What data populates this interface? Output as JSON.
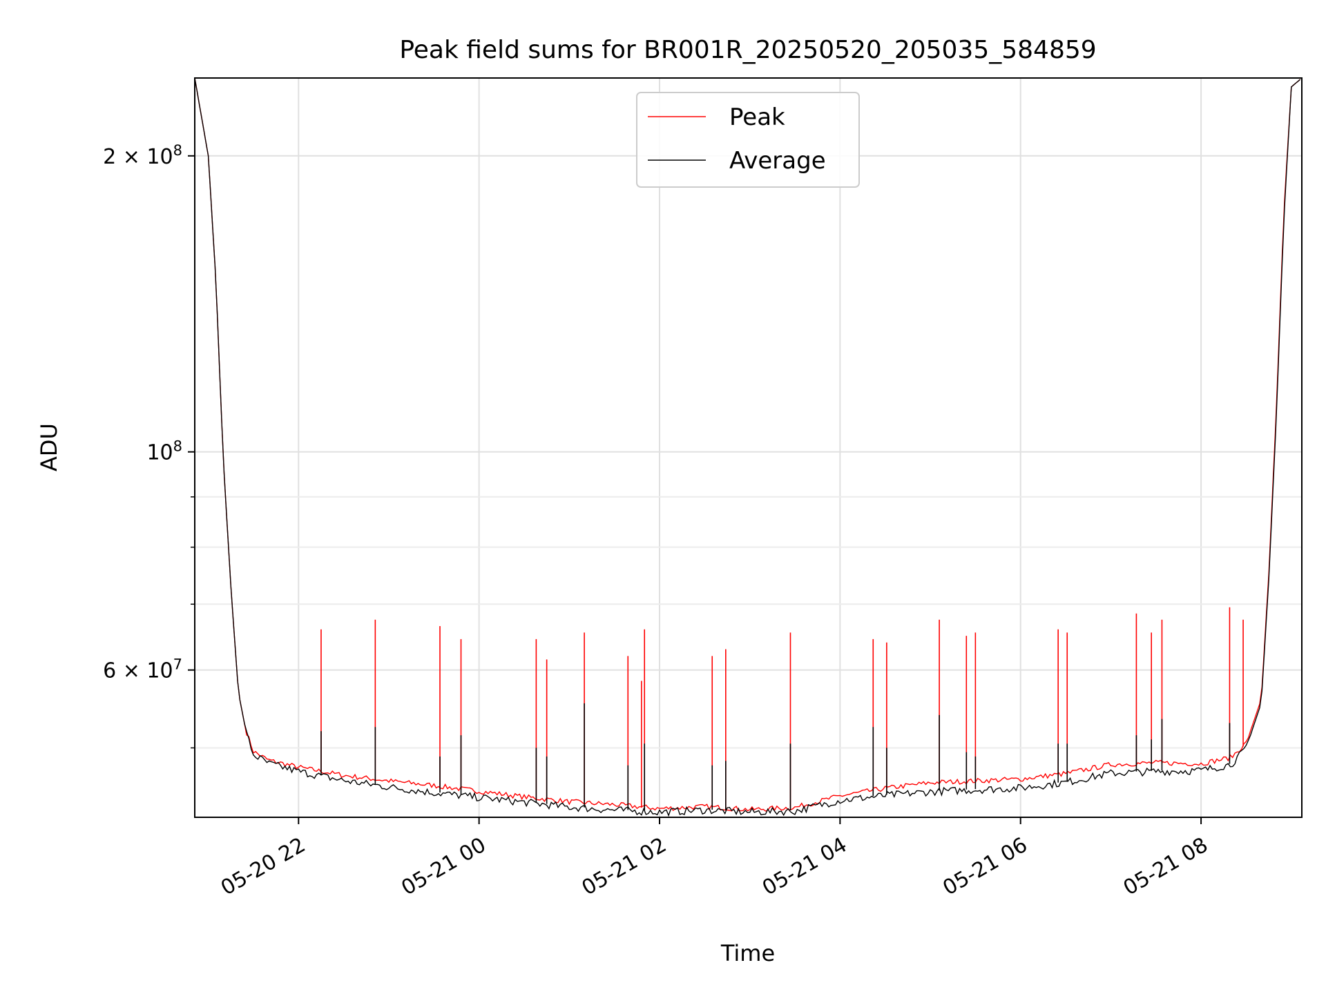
{
  "chart_data": {
    "type": "line",
    "title": "Peak field sums for BR001R_20250520_205035_584859",
    "xlabel": "Time",
    "ylabel": "ADU",
    "y_scale": "log",
    "ylim": [
      42500000,
      240000000
    ],
    "xlim": [
      "2025-05-20T20:51",
      "2025-05-21T09:07"
    ],
    "grid": true,
    "legend_position": "top-center",
    "x_ticks": [
      {
        "t": "2025-05-20T22:00",
        "label": "05-20 22"
      },
      {
        "t": "2025-05-21T00:00",
        "label": "05-21 00"
      },
      {
        "t": "2025-05-21T02:00",
        "label": "05-21 02"
      },
      {
        "t": "2025-05-21T04:00",
        "label": "05-21 04"
      },
      {
        "t": "2025-05-21T06:00",
        "label": "05-21 06"
      },
      {
        "t": "2025-05-21T08:00",
        "label": "05-21 08"
      }
    ],
    "y_major_ticks": [
      {
        "value": 100000000,
        "base": "10",
        "exp": "8"
      },
      {
        "value": 200000000,
        "base": "2 × 10",
        "exp": "8"
      },
      {
        "value": 60000000,
        "base": "6 × 10",
        "exp": "7"
      }
    ],
    "y_minor_ticks": [
      50000000,
      70000000,
      80000000,
      90000000
    ],
    "series": [
      {
        "name": "Peak",
        "color": "#ff0000",
        "x": [
          "2025-05-20T20:51",
          "2025-05-20T21:00",
          "2025-05-20T21:05",
          "2025-05-20T21:10",
          "2025-05-20T21:15",
          "2025-05-20T21:20",
          "2025-05-20T21:25",
          "2025-05-20T21:30",
          "2025-05-20T21:40",
          "2025-05-20T22:00",
          "2025-05-20T22:30",
          "2025-05-20T23:00",
          "2025-05-20T23:30",
          "2025-05-21T00:00",
          "2025-05-21T00:30",
          "2025-05-21T01:00",
          "2025-05-21T01:30",
          "2025-05-21T02:00",
          "2025-05-21T02:30",
          "2025-05-21T03:00",
          "2025-05-21T03:30",
          "2025-05-21T04:00",
          "2025-05-21T04:30",
          "2025-05-21T05:00",
          "2025-05-21T05:30",
          "2025-05-21T06:00",
          "2025-05-21T06:30",
          "2025-05-21T07:00",
          "2025-05-21T07:30",
          "2025-05-21T08:00",
          "2025-05-21T08:20",
          "2025-05-21T08:30",
          "2025-05-21T08:40",
          "2025-05-21T08:45",
          "2025-05-21T08:50",
          "2025-05-21T08:55",
          "2025-05-21T09:00",
          "2025-05-21T09:07"
        ],
        "y": [
          240000000,
          200000000,
          150000000,
          98000000,
          73000000,
          57000000,
          52000000,
          49500000,
          48500000,
          47700000,
          46800000,
          46200000,
          45700000,
          45100000,
          44500000,
          44000000,
          43700000,
          43300000,
          43500000,
          43200000,
          43400000,
          44600000,
          45400000,
          46000000,
          46200000,
          46400000,
          47000000,
          48000000,
          48200000,
          48100000,
          48800000,
          50500000,
          56000000,
          75000000,
          110000000,
          175000000,
          235000000,
          240000000
        ],
        "spikes": [
          {
            "t": "2025-05-20T22:15",
            "value": 66000000
          },
          {
            "t": "2025-05-20T22:51",
            "value": 67500000
          },
          {
            "t": "2025-05-20T23:34",
            "value": 66500000
          },
          {
            "t": "2025-05-20T23:48",
            "value": 64500000
          },
          {
            "t": "2025-05-21T00:38",
            "value": 64500000
          },
          {
            "t": "2025-05-21T00:45",
            "value": 61500000
          },
          {
            "t": "2025-05-21T01:10",
            "value": 65500000
          },
          {
            "t": "2025-05-21T01:39",
            "value": 62000000
          },
          {
            "t": "2025-05-21T01:48",
            "value": 58500000
          },
          {
            "t": "2025-05-21T01:50",
            "value": 66000000
          },
          {
            "t": "2025-05-21T02:35",
            "value": 62000000
          },
          {
            "t": "2025-05-21T02:44",
            "value": 63000000
          },
          {
            "t": "2025-05-21T03:27",
            "value": 65500000
          },
          {
            "t": "2025-05-21T04:22",
            "value": 64500000
          },
          {
            "t": "2025-05-21T04:31",
            "value": 64000000
          },
          {
            "t": "2025-05-21T05:06",
            "value": 67500000
          },
          {
            "t": "2025-05-21T05:24",
            "value": 65000000
          },
          {
            "t": "2025-05-21T05:30",
            "value": 65500000
          },
          {
            "t": "2025-05-21T06:25",
            "value": 66000000
          },
          {
            "t": "2025-05-21T06:31",
            "value": 65500000
          },
          {
            "t": "2025-05-21T07:17",
            "value": 68500000
          },
          {
            "t": "2025-05-21T07:27",
            "value": 65500000
          },
          {
            "t": "2025-05-21T07:34",
            "value": 67500000
          },
          {
            "t": "2025-05-21T08:19",
            "value": 69500000
          },
          {
            "t": "2025-05-21T08:28",
            "value": 67500000
          }
        ]
      },
      {
        "name": "Average",
        "color": "#000000",
        "x": [
          "2025-05-20T20:51",
          "2025-05-20T21:00",
          "2025-05-20T21:05",
          "2025-05-20T21:10",
          "2025-05-20T21:15",
          "2025-05-20T21:20",
          "2025-05-20T21:25",
          "2025-05-20T21:30",
          "2025-05-20T21:40",
          "2025-05-20T22:00",
          "2025-05-20T22:30",
          "2025-05-20T23:00",
          "2025-05-20T23:30",
          "2025-05-21T00:00",
          "2025-05-21T00:30",
          "2025-05-21T01:00",
          "2025-05-21T01:30",
          "2025-05-21T02:00",
          "2025-05-21T02:30",
          "2025-05-21T03:00",
          "2025-05-21T03:30",
          "2025-05-21T04:00",
          "2025-05-21T04:30",
          "2025-05-21T05:00",
          "2025-05-21T05:30",
          "2025-05-21T06:00",
          "2025-05-21T06:30",
          "2025-05-21T07:00",
          "2025-05-21T07:30",
          "2025-05-21T08:00",
          "2025-05-21T08:20",
          "2025-05-21T08:30",
          "2025-05-21T08:40",
          "2025-05-21T08:45",
          "2025-05-21T08:50",
          "2025-05-21T08:55",
          "2025-05-21T09:00",
          "2025-05-21T09:07"
        ],
        "y": [
          240000000,
          200000000,
          150000000,
          98000000,
          73000000,
          57000000,
          52000000,
          49300000,
          48300000,
          47400000,
          46400000,
          45700000,
          45100000,
          44600000,
          44100000,
          43600000,
          43300000,
          43100000,
          43300000,
          43100000,
          43200000,
          44300000,
          44800000,
          45200000,
          45400000,
          45600000,
          46200000,
          47200000,
          47400000,
          47500000,
          48200000,
          50000000,
          55500000,
          74000000,
          108000000,
          172000000,
          235000000,
          240000000
        ],
        "spikes": [
          {
            "t": "2025-05-20T22:15",
            "value": 52000000
          },
          {
            "t": "2025-05-20T22:51",
            "value": 52500000
          },
          {
            "t": "2025-05-20T23:34",
            "value": 49000000
          },
          {
            "t": "2025-05-20T23:48",
            "value": 51500000
          },
          {
            "t": "2025-05-21T00:38",
            "value": 50000000
          },
          {
            "t": "2025-05-21T00:45",
            "value": 49000000
          },
          {
            "t": "2025-05-21T01:10",
            "value": 55500000
          },
          {
            "t": "2025-05-21T01:39",
            "value": 48000000
          },
          {
            "t": "2025-05-21T01:50",
            "value": 50500000
          },
          {
            "t": "2025-05-21T02:35",
            "value": 48000000
          },
          {
            "t": "2025-05-21T02:44",
            "value": 48500000
          },
          {
            "t": "2025-05-21T03:27",
            "value": 50500000
          },
          {
            "t": "2025-05-21T04:22",
            "value": 52500000
          },
          {
            "t": "2025-05-21T04:31",
            "value": 50000000
          },
          {
            "t": "2025-05-21T05:06",
            "value": 54000000
          },
          {
            "t": "2025-05-21T05:24",
            "value": 49500000
          },
          {
            "t": "2025-05-21T05:30",
            "value": 49000000
          },
          {
            "t": "2025-05-21T06:25",
            "value": 50500000
          },
          {
            "t": "2025-05-21T06:31",
            "value": 50500000
          },
          {
            "t": "2025-05-21T07:17",
            "value": 51500000
          },
          {
            "t": "2025-05-21T07:27",
            "value": 51000000
          },
          {
            "t": "2025-05-21T07:34",
            "value": 53500000
          },
          {
            "t": "2025-05-21T08:19",
            "value": 53000000
          }
        ]
      }
    ]
  }
}
